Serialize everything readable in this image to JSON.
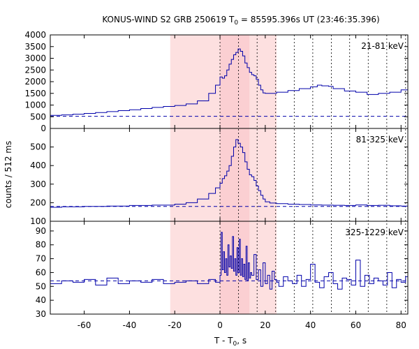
{
  "chart_data": {
    "type": "line",
    "title": "KONUS-WIND S2 GRB 250619 T",
    "title_sub": "0",
    "title_rest": " = 85595.396s UT (23:46:35.396)",
    "xlabel": "T - T",
    "xlabel_sub": "0",
    "xlabel_rest": ", s",
    "ylabel": "counts / 512 ms",
    "xlim": [
      -75,
      83
    ],
    "xticks": [
      -60,
      -40,
      -20,
      0,
      20,
      40,
      60,
      80
    ],
    "xtick_labels": [
      "-60",
      "-40",
      "-20",
      "0",
      "20",
      "40",
      "60",
      "80"
    ],
    "highlight_intervals": [
      {
        "x0": -22,
        "x1": 25,
        "color": "#fde0e0"
      },
      {
        "x0": 0,
        "x1": 13,
        "color": "#fbcfd2"
      }
    ],
    "vertical_markers": [
      0,
      8.2,
      16.4,
      24.6,
      32.8,
      41.0,
      49.2,
      57.3,
      65.5,
      73.7,
      82.0
    ],
    "line_color": "#0000aa",
    "panels": [
      {
        "band": "21-81 keV",
        "ylim": [
          0,
          4000
        ],
        "yticks": [
          0,
          500,
          1000,
          1500,
          2000,
          2500,
          3000,
          3500,
          4000
        ],
        "ytick_labels": [
          "0",
          "500",
          "1000",
          "1500",
          "2000",
          "2500",
          "3000",
          "3500",
          "4000"
        ],
        "background": 520,
        "x": [
          -75,
          -70,
          -65,
          -60,
          -55,
          -50,
          -45,
          -40,
          -35,
          -30,
          -25,
          -20,
          -15,
          -10,
          -5,
          -2,
          0,
          1,
          2,
          3,
          4,
          5,
          6,
          7,
          8,
          9,
          10,
          11,
          12,
          13,
          14,
          15,
          16,
          17,
          18,
          19,
          20,
          25,
          30,
          35,
          40,
          43,
          45,
          48,
          50,
          55,
          60,
          65,
          70,
          75,
          80,
          83
        ],
        "y": [
          560,
          580,
          610,
          640,
          680,
          720,
          760,
          800,
          850,
          900,
          940,
          980,
          1050,
          1180,
          1500,
          1850,
          2200,
          2150,
          2250,
          2500,
          2750,
          2950,
          3150,
          3250,
          3400,
          3300,
          3100,
          2800,
          2600,
          2400,
          2300,
          2250,
          2100,
          1850,
          1650,
          1520,
          1500,
          1550,
          1620,
          1700,
          1780,
          1850,
          1820,
          1800,
          1700,
          1600,
          1550,
          1450,
          1500,
          1550,
          1650,
          1700
        ]
      },
      {
        "band": "81-325 keV",
        "ylim": [
          100,
          600
        ],
        "yticks": [
          100,
          200,
          300,
          400,
          500
        ],
        "ytick_labels": [
          "100",
          "200",
          "300",
          "400",
          "500"
        ],
        "background": 180,
        "x": [
          -75,
          -70,
          -60,
          -50,
          -40,
          -30,
          -20,
          -15,
          -10,
          -5,
          -2,
          0,
          1,
          2,
          3,
          4,
          5,
          6,
          7,
          8,
          9,
          10,
          11,
          12,
          13,
          14,
          15,
          16,
          17,
          18,
          19,
          20,
          22,
          25,
          30,
          35,
          40,
          45,
          50,
          55,
          60,
          65,
          70,
          75,
          80,
          83
        ],
        "y": [
          175,
          178,
          180,
          182,
          185,
          187,
          192,
          200,
          220,
          250,
          280,
          305,
          330,
          345,
          370,
          400,
          450,
          500,
          540,
          520,
          500,
          470,
          420,
          380,
          350,
          340,
          320,
          290,
          265,
          240,
          220,
          205,
          198,
          195,
          192,
          190,
          188,
          187,
          186,
          185,
          188,
          185,
          186,
          183,
          182,
          188
        ]
      },
      {
        "band": "325-1229 keV",
        "ylim": [
          30,
          97
        ],
        "yticks": [
          30,
          40,
          50,
          60,
          70,
          80,
          90
        ],
        "ytick_labels": [
          "30",
          "40",
          "50",
          "60",
          "70",
          "80",
          "90"
        ],
        "background": 54,
        "x": [
          -75,
          -70,
          -65,
          -60,
          -55,
          -50,
          -45,
          -40,
          -35,
          -30,
          -25,
          -20,
          -15,
          -10,
          -5,
          -2,
          0,
          0.5,
          1,
          1.5,
          2,
          2.5,
          3,
          3.5,
          4,
          4.5,
          5,
          5.5,
          6,
          6.5,
          7,
          7.5,
          8,
          8.5,
          9,
          9.5,
          10,
          10.5,
          11,
          11.5,
          12,
          12.5,
          13,
          13.5,
          14,
          15,
          16,
          17,
          18,
          19,
          20,
          21,
          22,
          23,
          24,
          25,
          26,
          28,
          30,
          32,
          34,
          36,
          38,
          40,
          42,
          44,
          46,
          48,
          50,
          52,
          54,
          56,
          58,
          60,
          62,
          64,
          66,
          68,
          70,
          72,
          74,
          76,
          78,
          80,
          82,
          83
        ],
        "y": [
          52,
          54,
          53,
          55,
          51,
          56,
          52,
          54,
          53,
          55,
          52,
          53,
          54,
          52,
          55,
          53,
          58,
          89,
          62,
          75,
          60,
          70,
          58,
          80,
          64,
          72,
          63,
          86,
          61,
          70,
          58,
          78,
          60,
          84,
          58,
          70,
          57,
          66,
          55,
          79,
          54,
          67,
          56,
          60,
          58,
          73,
          55,
          62,
          50,
          67,
          52,
          58,
          48,
          61,
          55,
          53,
          50,
          57,
          54,
          52,
          58,
          50,
          55,
          66,
          53,
          49,
          57,
          60,
          52,
          48,
          56,
          55,
          51,
          69,
          50,
          58,
          52,
          56,
          54,
          51,
          60,
          49,
          55,
          53,
          57,
          52
        ]
      }
    ]
  }
}
